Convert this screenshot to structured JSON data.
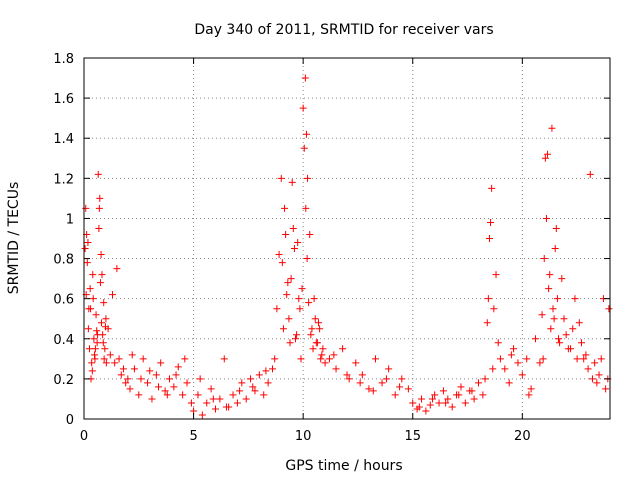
{
  "chart_data": {
    "type": "scatter",
    "title": "Day 340 of 2011, SRMTID for receiver vars",
    "xlabel": "GPS time / hours",
    "ylabel": "SRMTID / TECUs",
    "xlim": [
      0,
      24
    ],
    "ylim": [
      0,
      1.8
    ],
    "x_ticks": [
      "0",
      "5",
      "10",
      "15",
      "20"
    ],
    "x_tick_values": [
      0,
      5,
      10,
      15,
      20
    ],
    "y_ticks": [
      "0",
      "0.2",
      "0.4",
      "0.6",
      "0.8",
      "1",
      "1.2",
      "1.4",
      "1.6",
      "1.8"
    ],
    "y_tick_values": [
      0,
      0.2,
      0.4,
      0.6,
      0.8,
      1.0,
      1.2,
      1.4,
      1.6,
      1.8
    ],
    "grid": true,
    "marker": "+",
    "color": "#ff0000",
    "series": [
      {
        "x": [
          0.05,
          0.1,
          0.15,
          0.2,
          0.25,
          0.3,
          0.35,
          0.4,
          0.45,
          0.5,
          0.55,
          0.6,
          0.65,
          0.7,
          0.75,
          0.8,
          0.85,
          0.9,
          0.95,
          1.0,
          1.1,
          1.2,
          1.3,
          1.4,
          1.5,
          1.6,
          1.7,
          1.8,
          1.9,
          2.0,
          0.08,
          0.18,
          0.28,
          0.38,
          0.48,
          0.58,
          0.68,
          0.78,
          0.88,
          0.98,
          0.12,
          0.22,
          0.32,
          0.42,
          0.52,
          0.62,
          0.72,
          0.82,
          0.92,
          1.02,
          2.1,
          2.3,
          2.5,
          2.7,
          2.9,
          3.1,
          3.3,
          3.5,
          3.7,
          3.9,
          4.1,
          4.3,
          4.5,
          4.7,
          4.9,
          2.2,
          2.6,
          3.0,
          3.4,
          3.8,
          4.2,
          4.6,
          5.0,
          5.2,
          5.4,
          5.6,
          5.8,
          6.0,
          6.2,
          6.4,
          6.6,
          6.8,
          7.0,
          7.2,
          7.4,
          7.6,
          7.8,
          8.0,
          8.2,
          8.4,
          8.6,
          5.3,
          5.9,
          6.5,
          7.1,
          7.7,
          8.3,
          8.7,
          8.8,
          8.9,
          9.0,
          9.1,
          9.2,
          9.3,
          9.4,
          9.5,
          9.6,
          9.7,
          9.8,
          9.9,
          10.0,
          10.1,
          10.15,
          10.2,
          10.3,
          10.4,
          10.5,
          10.6,
          10.7,
          10.8,
          10.9,
          11.0,
          9.05,
          9.15,
          9.25,
          9.35,
          9.45,
          9.55,
          9.65,
          9.75,
          9.85,
          9.95,
          10.05,
          10.12,
          10.18,
          10.25,
          10.35,
          10.45,
          10.55,
          10.65,
          10.75,
          10.85,
          11.2,
          11.5,
          11.8,
          12.1,
          12.4,
          12.7,
          13.0,
          13.3,
          13.6,
          13.9,
          14.2,
          14.5,
          14.8,
          11.4,
          12.0,
          12.6,
          13.2,
          13.8,
          14.4,
          15.0,
          15.2,
          15.4,
          15.6,
          15.8,
          16.0,
          16.2,
          16.4,
          16.6,
          16.8,
          17.0,
          17.2,
          17.4,
          17.6,
          17.8,
          18.0,
          18.2,
          15.3,
          15.9,
          16.5,
          17.1,
          17.7,
          18.3,
          18.4,
          18.5,
          18.6,
          18.7,
          18.8,
          18.9,
          19.0,
          19.2,
          19.4,
          19.6,
          19.8,
          20.0,
          20.2,
          20.4,
          20.6,
          20.8,
          18.45,
          18.55,
          18.65,
          19.5,
          20.3,
          20.9,
          21.0,
          21.05,
          21.1,
          21.2,
          21.3,
          21.4,
          21.5,
          21.6,
          21.7,
          21.8,
          21.9,
          22.0,
          22.2,
          22.4,
          22.6,
          22.8,
          23.0,
          23.2,
          23.4,
          23.6,
          23.8,
          23.95,
          20.95,
          21.15,
          21.25,
          21.35,
          21.45,
          21.55,
          21.65,
          22.1,
          22.3,
          22.5,
          22.7,
          22.9,
          23.1,
          23.3,
          23.5,
          23.7,
          23.9
        ],
        "y": [
          0.85,
          0.62,
          0.78,
          0.45,
          0.35,
          0.55,
          0.28,
          0.72,
          0.4,
          0.3,
          0.52,
          0.38,
          1.22,
          1.05,
          0.68,
          0.48,
          0.42,
          0.58,
          0.35,
          0.5,
          0.45,
          0.32,
          0.62,
          0.28,
          0.75,
          0.3,
          0.22,
          0.25,
          0.18,
          0.2,
          1.05,
          0.88,
          0.65,
          0.24,
          0.32,
          0.44,
          0.95,
          0.82,
          0.38,
          0.46,
          0.92,
          0.55,
          0.2,
          0.6,
          0.35,
          0.42,
          1.1,
          0.72,
          0.3,
          0.28,
          0.15,
          0.25,
          0.12,
          0.3,
          0.18,
          0.1,
          0.22,
          0.28,
          0.14,
          0.2,
          0.16,
          0.26,
          0.12,
          0.18,
          0.08,
          0.32,
          0.2,
          0.24,
          0.16,
          0.12,
          0.22,
          0.3,
          0.04,
          0.12,
          0.02,
          0.08,
          0.15,
          0.05,
          0.1,
          0.3,
          0.06,
          0.12,
          0.08,
          0.18,
          0.1,
          0.2,
          0.14,
          0.22,
          0.12,
          0.18,
          0.25,
          0.2,
          0.1,
          0.06,
          0.14,
          0.16,
          0.24,
          0.3,
          0.55,
          0.82,
          1.2,
          0.45,
          0.92,
          0.68,
          0.38,
          1.18,
          0.85,
          0.42,
          0.6,
          0.3,
          1.55,
          1.7,
          1.42,
          1.2,
          0.92,
          0.45,
          0.6,
          0.38,
          0.48,
          0.3,
          0.35,
          0.28,
          0.78,
          1.05,
          0.62,
          0.5,
          0.7,
          0.95,
          0.4,
          0.88,
          0.55,
          0.65,
          1.35,
          1.05,
          0.8,
          0.58,
          0.42,
          0.35,
          0.5,
          0.38,
          0.45,
          0.32,
          0.3,
          0.25,
          0.35,
          0.2,
          0.28,
          0.22,
          0.15,
          0.3,
          0.18,
          0.25,
          0.12,
          0.2,
          0.15,
          0.32,
          0.22,
          0.18,
          0.14,
          0.2,
          0.16,
          0.08,
          0.05,
          0.1,
          0.04,
          0.07,
          0.12,
          0.08,
          0.14,
          0.1,
          0.06,
          0.12,
          0.16,
          0.08,
          0.14,
          0.1,
          0.18,
          0.12,
          0.06,
          0.1,
          0.08,
          0.12,
          0.14,
          0.2,
          0.48,
          0.9,
          1.15,
          0.55,
          0.72,
          0.38,
          0.3,
          0.25,
          0.18,
          0.35,
          0.28,
          0.22,
          0.3,
          0.15,
          0.4,
          0.28,
          0.6,
          0.98,
          0.25,
          0.32,
          0.12,
          0.52,
          0.8,
          1.3,
          1.0,
          0.65,
          0.45,
          0.55,
          0.85,
          0.6,
          0.38,
          0.7,
          0.5,
          0.42,
          0.35,
          0.6,
          0.48,
          0.3,
          0.25,
          0.2,
          0.18,
          0.3,
          0.15,
          0.55,
          0.3,
          1.32,
          0.72,
          1.45,
          0.5,
          0.95,
          0.4,
          0.35,
          0.45,
          0.3,
          0.38,
          0.32,
          1.22,
          0.28,
          0.22,
          0.6,
          0.2
        ]
      }
    ]
  }
}
